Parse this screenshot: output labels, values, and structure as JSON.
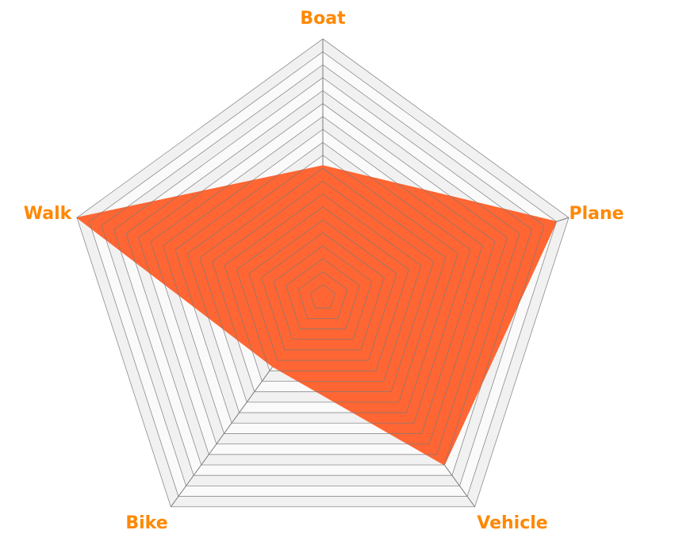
{
  "chart_data": {
    "type": "radar",
    "axes": [
      "Boat",
      "Plane",
      "Vehicle",
      "Bike",
      "Walk"
    ],
    "values": [
      51,
      95,
      80,
      33,
      100
    ],
    "rmax": 100,
    "grid_levels": 20,
    "grid": true,
    "legend": "none"
  },
  "colors": {
    "fill": "#ff6633",
    "label": "#ff8800",
    "grid_line": "#7a7a7a",
    "band_shade": "#f1f1f1",
    "band_light": "#fafafa"
  }
}
